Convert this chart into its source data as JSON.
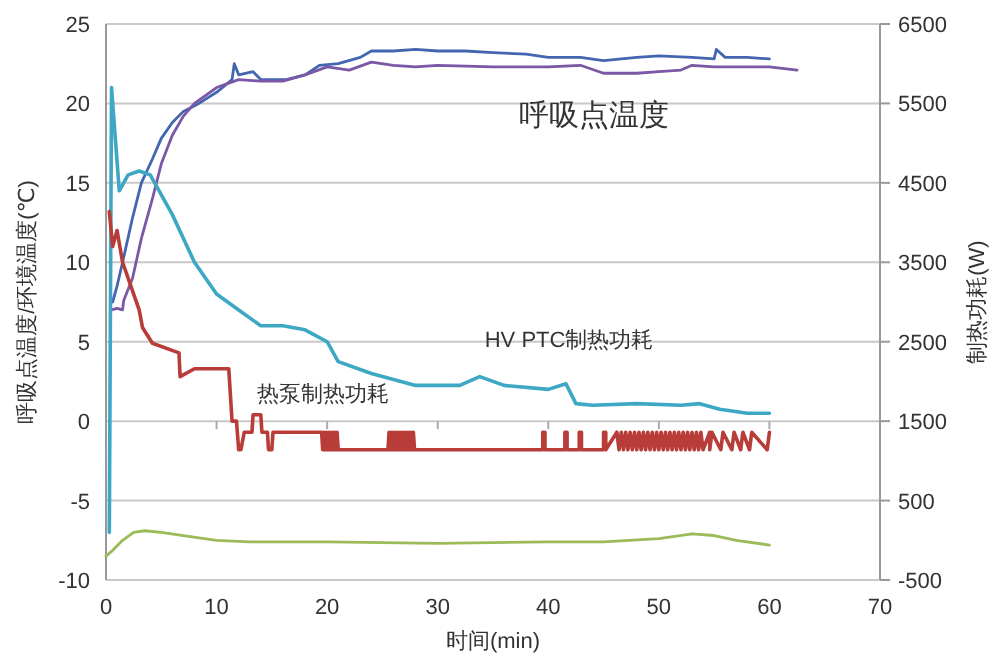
{
  "chart_data": {
    "type": "line",
    "xlabel": "时间(min)",
    "ylabel": "呼吸点温度/环境温度(℃)",
    "y2label": "制热功耗(W)",
    "xlim": [
      0,
      70
    ],
    "xticks": [
      0,
      10,
      20,
      30,
      40,
      50,
      60,
      70
    ],
    "ylim": [
      -10,
      25
    ],
    "yticks": [
      -10,
      -5,
      0,
      5,
      10,
      15,
      20,
      25
    ],
    "y2lim": [
      -500,
      6500
    ],
    "y2ticks": [
      -500,
      500,
      1500,
      2500,
      3500,
      4500,
      5500,
      6500
    ],
    "grid": "y",
    "series": [
      {
        "name": "呼吸点温度",
        "color": "#4466b0",
        "x": [
          0.6,
          1,
          1.5,
          2.4,
          3.2,
          4.2,
          5,
          6,
          7,
          8.4,
          10,
          11.4,
          11.6,
          12,
          13.3,
          14,
          16.3,
          18,
          19.3,
          21,
          23,
          24,
          26,
          28,
          30,
          32.5,
          35,
          38,
          40,
          42.9,
          45,
          48,
          50,
          53,
          55,
          55.2,
          56,
          58,
          60
        ],
        "values": [
          7.5,
          8.5,
          10,
          12.8,
          15,
          16.5,
          17.8,
          18.8,
          19.5,
          20,
          20.7,
          21.5,
          22.5,
          21.8,
          22,
          21.5,
          21.5,
          21.8,
          22.4,
          22.5,
          22.9,
          23.3,
          23.3,
          23.4,
          23.3,
          23.3,
          23.2,
          23.1,
          22.9,
          22.9,
          22.7,
          22.9,
          23,
          22.9,
          22.8,
          23.4,
          22.9,
          22.9,
          22.8
        ]
      },
      {
        "color": "#7a58a6",
        "x": [
          0.5,
          1,
          1.5,
          1.6,
          2.4,
          3.2,
          4.2,
          5,
          6,
          7,
          8,
          10,
          12,
          14,
          16,
          18,
          20,
          22,
          24,
          26,
          28,
          30,
          35,
          40,
          42.9,
          45,
          48,
          50,
          52,
          53,
          55,
          58,
          60,
          62.5
        ],
        "values": [
          7,
          7.1,
          7,
          7.6,
          9,
          11.5,
          14,
          16.2,
          18,
          19.2,
          20,
          21,
          21.5,
          21.4,
          21.4,
          21.8,
          22.3,
          22.1,
          22.6,
          22.4,
          22.3,
          22.4,
          22.3,
          22.3,
          22.4,
          21.9,
          21.9,
          22,
          22.1,
          22.4,
          22.3,
          22.3,
          22.3,
          22.1
        ]
      },
      {
        "color": "#9bbb59",
        "x": [
          0,
          0.5,
          1.5,
          2.5,
          3.5,
          5,
          7,
          10,
          13,
          20,
          30,
          40,
          45,
          50,
          53,
          55,
          57,
          60
        ],
        "values": [
          -8.5,
          -8.2,
          -7.5,
          -7,
          -6.9,
          -7,
          -7.2,
          -7.5,
          -7.6,
          -7.6,
          -7.7,
          -7.6,
          -7.6,
          -7.4,
          -7.1,
          -7.2,
          -7.5,
          -7.8
        ]
      },
      {
        "name": "HV PTC制热功耗",
        "color": "#3ea8c4",
        "axis": "y2",
        "x": [
          0.3,
          0.5,
          1.2,
          2,
          3,
          4,
          6,
          8,
          10,
          12,
          14,
          16,
          18,
          20,
          21,
          24,
          28,
          32,
          33.8,
          36,
          40,
          41.6,
          42.5,
          44,
          48,
          52,
          53.7,
          55.5,
          58,
          60
        ],
        "values": [
          100,
          5700,
          4400,
          4600,
          4650,
          4600,
          4100,
          3500,
          3100,
          2900,
          2700,
          2700,
          2650,
          2500,
          2250,
          2100,
          1950,
          1950,
          2060,
          1950,
          1900,
          1970,
          1720,
          1700,
          1720,
          1700,
          1720,
          1650,
          1600,
          1600
        ]
      },
      {
        "name": "热泵制热功耗",
        "color": "#b83c38",
        "axis": "y2",
        "x": [
          0.3,
          0.6,
          1,
          1.5,
          2,
          2.5,
          3,
          3.3,
          4.2,
          6.6,
          6.7,
          8,
          11.1,
          11.4,
          11.8,
          12,
          12.2,
          12.5,
          13.2,
          13.3,
          14,
          14.1,
          14.6,
          14.7,
          15,
          15.1,
          15.2,
          15.3,
          19.5,
          19.6,
          19.7,
          19.8,
          19.9,
          20,
          20.1,
          20.2,
          20.3,
          20.4,
          20.5,
          20.6,
          20.7,
          20.8,
          20.9,
          21,
          21.1,
          25.5,
          25.6,
          25.7,
          25.8,
          25.9,
          26,
          26.1,
          26.2,
          26.3,
          26.4,
          26.5,
          26.6,
          26.7,
          26.8,
          26.9,
          27,
          27.1,
          27.2,
          27.3,
          27.4,
          27.5,
          27.6,
          27.7,
          27.8,
          27.9,
          28,
          39.5,
          39.5,
          39.7,
          39.7,
          41.5,
          41.5,
          41.7,
          41.7,
          42.8,
          42.8,
          43,
          43,
          45,
          45,
          45.2,
          45.2,
          46.2,
          46.4,
          46.6,
          46.8,
          47,
          47.2,
          47.4,
          47.6,
          47.8,
          48,
          48.2,
          48.4,
          48.6,
          48.8,
          49,
          49.2,
          49.4,
          49.6,
          49.8,
          50,
          50.2,
          50.4,
          50.6,
          50.8,
          51,
          51.2,
          51.4,
          51.6,
          51.8,
          52,
          52.2,
          52.4,
          52.6,
          52.8,
          53,
          53.2,
          53.4,
          53.6,
          53.8,
          54,
          54.6,
          54.6,
          54.8,
          54.8,
          55.6,
          55.6,
          55.8,
          55.8,
          56.6,
          56.6,
          56.8,
          56.8,
          57.4,
          57.4,
          57.6,
          57.6,
          58.2,
          58.2,
          58.4,
          58.4,
          59.8,
          59.8,
          60,
          60
        ],
        "values": [
          4140,
          3700,
          3900,
          3500,
          3300,
          3100,
          2900,
          2680,
          2480,
          2360,
          2060,
          2160,
          2160,
          1500,
          1500,
          1140,
          1140,
          1360,
          1360,
          1580,
          1580,
          1360,
          1360,
          1140,
          1140,
          1360,
          1360,
          1360,
          1360,
          1140,
          1360,
          1140,
          1360,
          1140,
          1360,
          1140,
          1360,
          1140,
          1360,
          1140,
          1360,
          1140,
          1360,
          1140,
          1140,
          1140,
          1360,
          1140,
          1360,
          1140,
          1360,
          1140,
          1360,
          1140,
          1360,
          1140,
          1360,
          1140,
          1360,
          1140,
          1360,
          1140,
          1360,
          1140,
          1360,
          1140,
          1360,
          1140,
          1360,
          1140,
          1140,
          1140,
          1360,
          1360,
          1140,
          1140,
          1360,
          1360,
          1140,
          1140,
          1360,
          1360,
          1140,
          1140,
          1360,
          1360,
          1140,
          1360,
          1140,
          1360,
          1140,
          1360,
          1140,
          1360,
          1140,
          1360,
          1140,
          1360,
          1140,
          1360,
          1140,
          1360,
          1140,
          1360,
          1140,
          1360,
          1140,
          1360,
          1140,
          1360,
          1140,
          1360,
          1140,
          1360,
          1140,
          1360,
          1140,
          1360,
          1140,
          1360,
          1140,
          1360,
          1140,
          1360,
          1140,
          1360,
          1140,
          1360,
          1140,
          1360,
          1360,
          1140,
          1140,
          1360,
          1360,
          1140,
          1140,
          1360,
          1360,
          1140,
          1140,
          1360,
          1360,
          1140,
          1140,
          1360,
          1360,
          1140,
          1140,
          1360,
          1360
        ]
      }
    ]
  }
}
